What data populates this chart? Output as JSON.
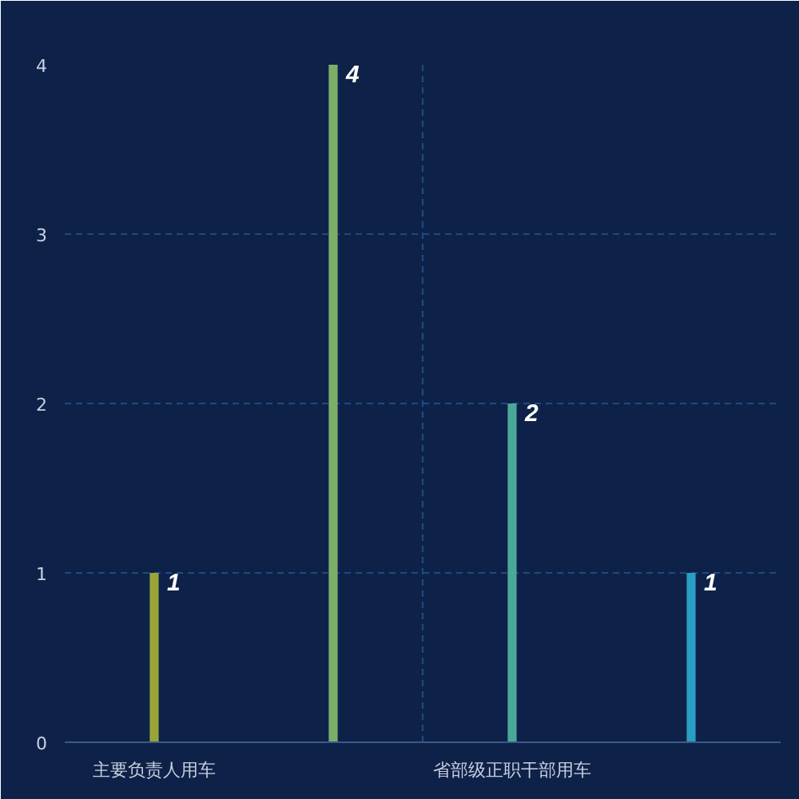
{
  "chart_data": {
    "type": "bar",
    "categories": [
      "主要负责人用车",
      null,
      "省部级正职干部用车",
      null
    ],
    "values": [
      1,
      4,
      2,
      1
    ],
    "colors": [
      "#9aa43a",
      "#7cae6a",
      "#4aa898",
      "#2a9ec0"
    ],
    "ylim": [
      0,
      4
    ],
    "yticks": [
      0,
      1,
      2,
      3,
      4
    ],
    "grid": true,
    "data_labels": true
  }
}
